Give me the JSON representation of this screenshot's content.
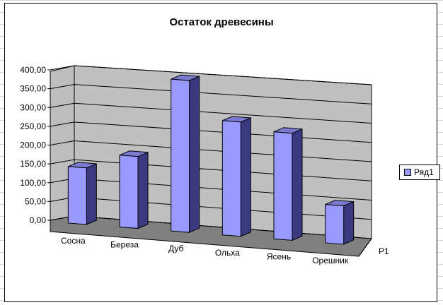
{
  "chart_data": {
    "type": "bar",
    "title": "Остаток древесины",
    "categories": [
      "Сосна",
      "Береза",
      "Дуб",
      "Ольха",
      "Ясень",
      "Орешник"
    ],
    "series": [
      {
        "name": "Ряд1",
        "values": [
          150,
          190,
          400,
          300,
          280,
          100
        ]
      }
    ],
    "y_ticks": [
      "0,00",
      "50,00",
      "100,00",
      "150,00",
      "200,00",
      "250,00",
      "300,00",
      "350,00",
      "400,00"
    ],
    "ylim": [
      0,
      400
    ],
    "depth_axis_label": "Р1",
    "grid": true,
    "legend_position": "right",
    "style": "3d-column",
    "colors": {
      "bar_front": "#9999ff",
      "bar_side": "#3a3a80",
      "bar_top": "#7a7ad0",
      "back_wall": "#c0c0c0",
      "floor": "#808080",
      "side_wall": "#bdbdbd"
    }
  }
}
